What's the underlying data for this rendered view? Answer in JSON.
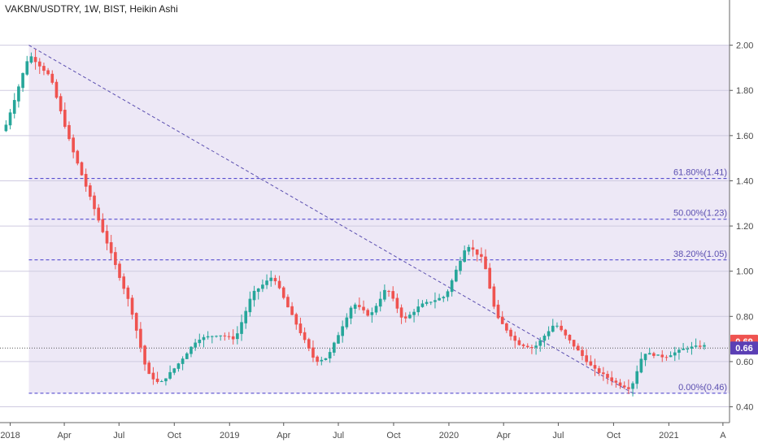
{
  "chart_data": {
    "type": "candlestick",
    "title": "VAKBN/USDTRY, 1W, BIST, Heikin Ashi",
    "ylim": [
      0.33,
      2.2
    ],
    "grid": true,
    "y_ticks": [
      "2.00",
      "1.80",
      "1.60",
      "1.40",
      "1.20",
      "1.00",
      "0.80",
      "0.60",
      "0.40"
    ],
    "x_ticks": [
      {
        "label": "2018",
        "date": "2018-01-01"
      },
      {
        "label": "Apr",
        "date": "2018-04-01"
      },
      {
        "label": "Jul",
        "date": "2018-07-01"
      },
      {
        "label": "Oct",
        "date": "2018-10-01"
      },
      {
        "label": "2019",
        "date": "2019-01-01"
      },
      {
        "label": "Apr",
        "date": "2019-04-01"
      },
      {
        "label": "Jul",
        "date": "2019-07-01"
      },
      {
        "label": "Oct",
        "date": "2019-10-01"
      },
      {
        "label": "2020",
        "date": "2020-01-01"
      },
      {
        "label": "Apr",
        "date": "2020-04-01"
      },
      {
        "label": "Jul",
        "date": "2020-07-01"
      },
      {
        "label": "Oct",
        "date": "2020-10-01"
      },
      {
        "label": "2021",
        "date": "2021-01-01"
      },
      {
        "label": "A",
        "date": "2021-04-01"
      }
    ],
    "fib_levels": [
      {
        "label": "61.80%(1.41)",
        "value": 1.41
      },
      {
        "label": "50.00%(1.23)",
        "value": 1.23
      },
      {
        "label": "38.20%(1.05)",
        "value": 1.05
      },
      {
        "label": "0.00%(0.46)",
        "value": 0.46
      }
    ],
    "fib_range": {
      "start": "2018-02-01",
      "end": "2021-03-01",
      "high": 2.0,
      "low": 0.46
    },
    "trendline": [
      {
        "date": "2018-02-01",
        "value": 2.0
      },
      {
        "date": "2020-11-02",
        "value": 0.46
      }
    ],
    "price_badges": [
      {
        "label": "0.69",
        "value": 0.69,
        "color": "#ef5350"
      },
      {
        "label": "0.66",
        "value": 0.66,
        "color": "#5b3fb5"
      }
    ],
    "last_price_line": 0.66,
    "candle_colors": {
      "up": "#26a69a",
      "down": "#ef5350"
    },
    "path_points": [
      {
        "date": "2017-12-25",
        "value": 1.62
      },
      {
        "date": "2018-02-05",
        "value": 1.96
      },
      {
        "date": "2018-03-12",
        "value": 1.86
      },
      {
        "date": "2018-04-16",
        "value": 1.55
      },
      {
        "date": "2018-05-21",
        "value": 1.3
      },
      {
        "date": "2018-06-25",
        "value": 1.05
      },
      {
        "date": "2018-07-23",
        "value": 0.85
      },
      {
        "date": "2018-08-20",
        "value": 0.55
      },
      {
        "date": "2018-09-10",
        "value": 0.5
      },
      {
        "date": "2018-10-08",
        "value": 0.58
      },
      {
        "date": "2018-11-12",
        "value": 0.7
      },
      {
        "date": "2018-12-17",
        "value": 0.72
      },
      {
        "date": "2019-01-14",
        "value": 0.7
      },
      {
        "date": "2019-02-11",
        "value": 0.9
      },
      {
        "date": "2019-03-18",
        "value": 0.98
      },
      {
        "date": "2019-04-15",
        "value": 0.82
      },
      {
        "date": "2019-05-27",
        "value": 0.6
      },
      {
        "date": "2019-06-17",
        "value": 0.62
      },
      {
        "date": "2019-07-29",
        "value": 0.86
      },
      {
        "date": "2019-08-26",
        "value": 0.8
      },
      {
        "date": "2019-09-23",
        "value": 0.93
      },
      {
        "date": "2019-10-21",
        "value": 0.78
      },
      {
        "date": "2019-11-18",
        "value": 0.85
      },
      {
        "date": "2019-12-30",
        "value": 0.89
      },
      {
        "date": "2020-02-03",
        "value": 1.12
      },
      {
        "date": "2020-03-02",
        "value": 1.05
      },
      {
        "date": "2020-03-23",
        "value": 0.8
      },
      {
        "date": "2020-04-27",
        "value": 0.68
      },
      {
        "date": "2020-05-25",
        "value": 0.66
      },
      {
        "date": "2020-06-29",
        "value": 0.77
      },
      {
        "date": "2020-07-27",
        "value": 0.68
      },
      {
        "date": "2020-08-31",
        "value": 0.57
      },
      {
        "date": "2020-10-12",
        "value": 0.5
      },
      {
        "date": "2020-11-02",
        "value": 0.48
      },
      {
        "date": "2020-11-23",
        "value": 0.64
      },
      {
        "date": "2020-12-28",
        "value": 0.62
      },
      {
        "date": "2021-02-01",
        "value": 0.66
      },
      {
        "date": "2021-03-01",
        "value": 0.67
      }
    ]
  }
}
